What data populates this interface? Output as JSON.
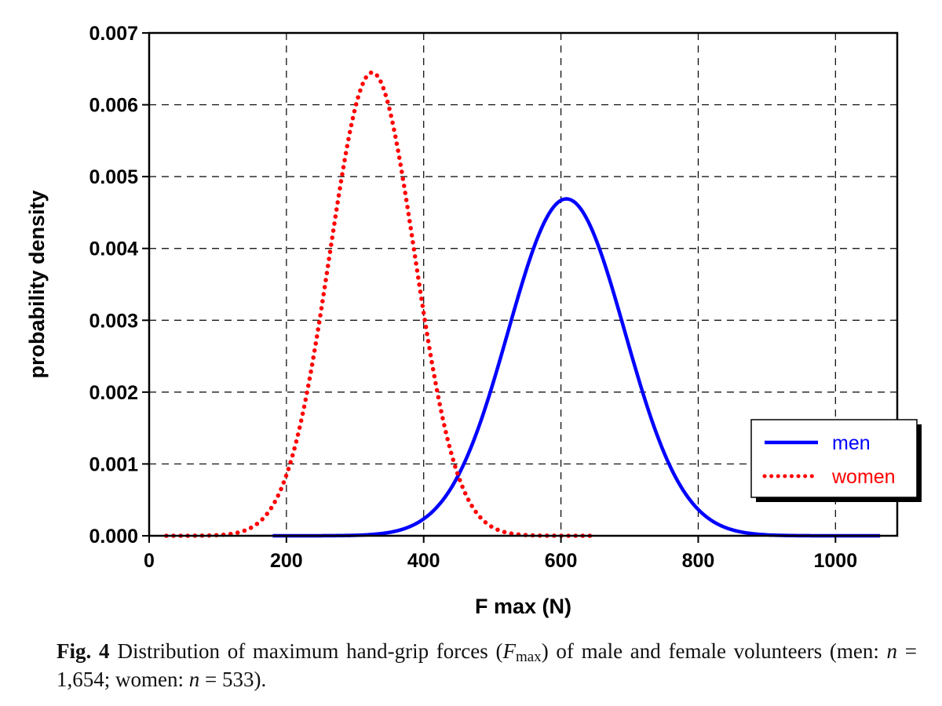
{
  "chart_data": {
    "type": "line",
    "xlabel": "F max (N)",
    "ylabel": "probability density",
    "xlim": [
      0,
      1090
    ],
    "ylim": [
      0,
      0.007
    ],
    "x_ticks": [
      "0",
      "200",
      "400",
      "600",
      "800",
      "1000"
    ],
    "x_tick_values": [
      0,
      200,
      400,
      600,
      800,
      1000
    ],
    "y_ticks": [
      "0.000",
      "0.001",
      "0.002",
      "0.003",
      "0.004",
      "0.005",
      "0.006",
      "0.007"
    ],
    "y_tick_values": [
      0,
      0.001,
      0.002,
      0.003,
      0.004,
      0.005,
      0.006,
      0.007
    ],
    "grid": true,
    "legend_position": "bottom-right",
    "series": [
      {
        "name": "men",
        "style": "solid",
        "color": "#0000ff",
        "distribution": "normal",
        "mean": 608,
        "sd": 85,
        "x_range": [
          180,
          1065
        ],
        "peak_density": 0.00469
      },
      {
        "name": "women",
        "style": "dotted",
        "color": "#ff0000",
        "distribution": "normal",
        "mean": 325,
        "sd": 62,
        "x_range": [
          25,
          650
        ],
        "peak_density": 0.00645
      }
    ]
  },
  "caption": {
    "label": "Fig. 4",
    "text_1": "Distribution of maximum hand-grip forces (",
    "var_main": "F",
    "var_sub": "max",
    "text_2": ") of male and female volunteers (men: ",
    "n_symbol_1": "n",
    "text_3": " = 1,654; women: ",
    "n_symbol_2": "n",
    "text_4": " = 533)."
  }
}
